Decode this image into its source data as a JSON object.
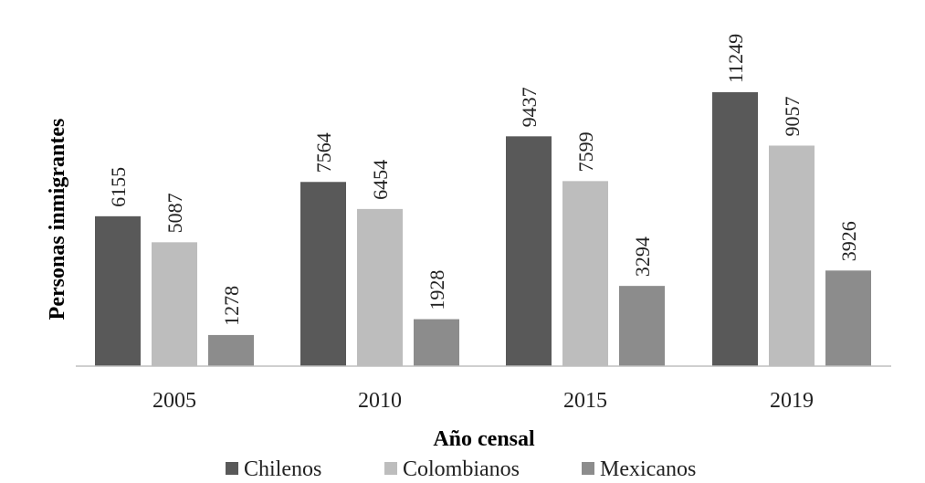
{
  "chart_data": {
    "type": "bar",
    "categories": [
      "2005",
      "2010",
      "2015",
      "2019"
    ],
    "series": [
      {
        "name": "Chilenos",
        "values": [
          6155,
          7564,
          9437,
          11249
        ],
        "color": "#595959"
      },
      {
        "name": "Colombianos",
        "values": [
          5087,
          6454,
          7599,
          9057
        ],
        "color": "#bdbdbd"
      },
      {
        "name": "Mexicanos",
        "values": [
          1278,
          1928,
          3294,
          3926
        ],
        "color": "#8c8c8c"
      }
    ],
    "xlabel": "Año censal",
    "ylabel": "Personas inmigrantes",
    "ylim": [
      0,
      11249
    ],
    "grid": false,
    "legend_position": "bottom",
    "data_labels": true
  }
}
